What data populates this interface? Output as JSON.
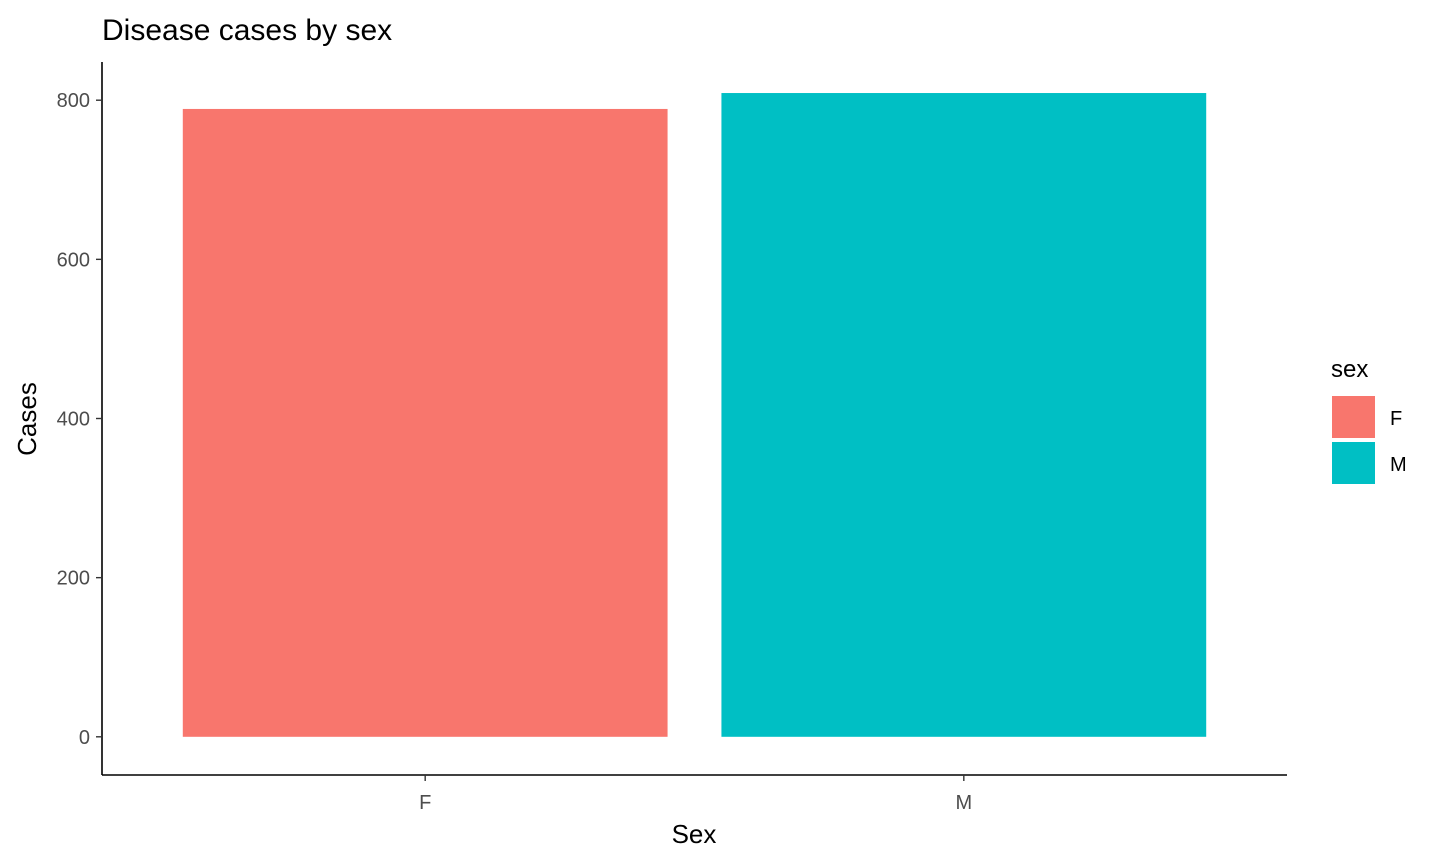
{
  "chart_data": {
    "type": "bar",
    "title": "Disease cases by sex",
    "xlabel": "Sex",
    "ylabel": "Cases",
    "categories": [
      "F",
      "M"
    ],
    "values": [
      789,
      809
    ],
    "colors": [
      "#F8766D",
      "#00BFC4"
    ],
    "ylim": [
      -48,
      848
    ],
    "yticks": [
      0,
      200,
      400,
      600,
      800
    ],
    "grid": false,
    "legend": {
      "title": "sex",
      "placement": "right",
      "entries": [
        {
          "label": "F",
          "color": "#F8766D"
        },
        {
          "label": "M",
          "color": "#00BFC4"
        }
      ]
    }
  }
}
